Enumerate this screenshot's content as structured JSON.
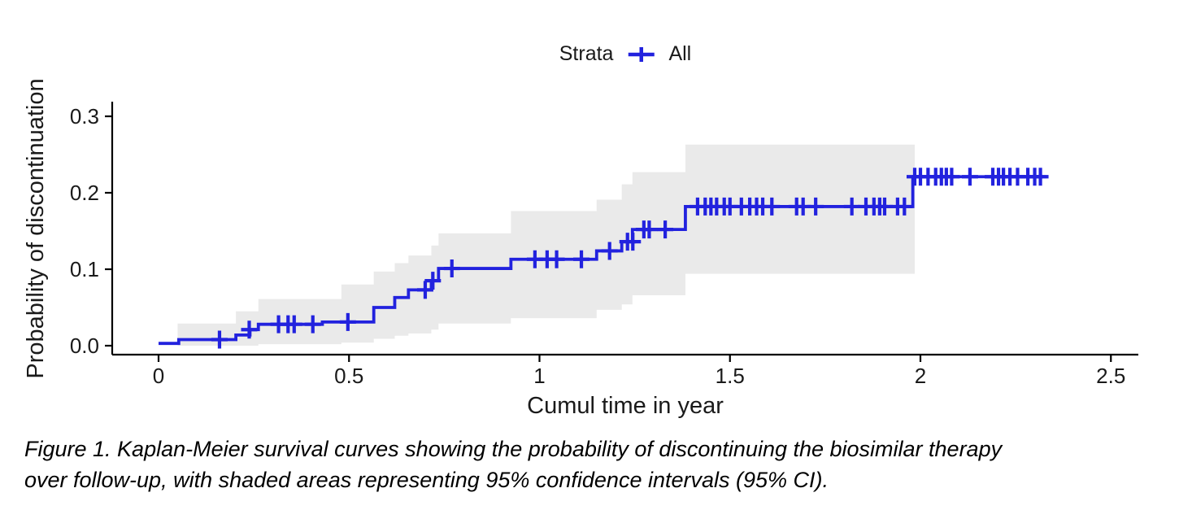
{
  "figure": {
    "caption_lines": [
      "Figure 1. Kaplan-Meier survival curves showing the probability of discontinuing the biosimilar therapy",
      "over follow-up, with shaded areas representing 95% confidence intervals (95% CI)."
    ]
  },
  "chart_data": {
    "type": "line",
    "subtype": "kaplan-meier-step",
    "title": "",
    "xlabel": "Cumul time in year",
    "ylabel": "Probability of discontinuation",
    "grid": false,
    "legend": {
      "title": "Strata",
      "position": "top",
      "entries": [
        {
          "label": "All",
          "color": "#2222DE",
          "marker": "plus"
        }
      ]
    },
    "xlim": [
      -0.12,
      2.57
    ],
    "ylim": [
      0,
      0.319
    ],
    "x_ticks": [
      {
        "value": 0,
        "label": "0"
      },
      {
        "value": 0.5,
        "label": "0.5"
      },
      {
        "value": 1,
        "label": "1"
      },
      {
        "value": 1.5,
        "label": "1.5"
      },
      {
        "value": 2,
        "label": "2"
      },
      {
        "value": 2.5,
        "label": "2.5"
      }
    ],
    "y_ticks": [
      {
        "value": 0.0,
        "label": "0.0"
      },
      {
        "value": 0.1,
        "label": "0.1"
      },
      {
        "value": 0.2,
        "label": "0.2"
      },
      {
        "value": 0.3,
        "label": "0.3"
      }
    ],
    "colors": {
      "curve": "#2222DE",
      "ci_band": "#EAEAEA",
      "axis": "#000000",
      "tick_text": "#1A1A1A"
    },
    "series": [
      {
        "name": "All",
        "steps": [
          [
            0.0,
            0.003
          ],
          [
            0.053,
            0.008
          ],
          [
            0.203,
            0.014
          ],
          [
            0.24,
            0.021
          ],
          [
            0.262,
            0.028
          ],
          [
            0.43,
            0.031
          ],
          [
            0.565,
            0.05
          ],
          [
            0.62,
            0.063
          ],
          [
            0.656,
            0.073
          ],
          [
            0.716,
            0.085
          ],
          [
            0.735,
            0.101
          ],
          [
            0.925,
            0.113
          ],
          [
            1.15,
            0.124
          ],
          [
            1.216,
            0.136
          ],
          [
            1.244,
            0.152
          ],
          [
            1.383,
            0.182
          ],
          [
            1.98,
            0.221
          ]
        ],
        "end_time": 2.33,
        "censors": [
          [
            0.16,
            0.008
          ],
          [
            0.238,
            0.021
          ],
          [
            0.315,
            0.028
          ],
          [
            0.34,
            0.028
          ],
          [
            0.356,
            0.028
          ],
          [
            0.405,
            0.028
          ],
          [
            0.497,
            0.031
          ],
          [
            0.7,
            0.073
          ],
          [
            0.72,
            0.085
          ],
          [
            0.77,
            0.101
          ],
          [
            0.988,
            0.113
          ],
          [
            1.02,
            0.113
          ],
          [
            1.045,
            0.113
          ],
          [
            1.11,
            0.113
          ],
          [
            1.184,
            0.124
          ],
          [
            1.231,
            0.136
          ],
          [
            1.245,
            0.136
          ],
          [
            1.274,
            0.152
          ],
          [
            1.288,
            0.152
          ],
          [
            1.33,
            0.152
          ],
          [
            1.415,
            0.182
          ],
          [
            1.435,
            0.182
          ],
          [
            1.45,
            0.182
          ],
          [
            1.465,
            0.182
          ],
          [
            1.485,
            0.182
          ],
          [
            1.5,
            0.182
          ],
          [
            1.53,
            0.182
          ],
          [
            1.552,
            0.182
          ],
          [
            1.57,
            0.182
          ],
          [
            1.586,
            0.182
          ],
          [
            1.61,
            0.182
          ],
          [
            1.675,
            0.182
          ],
          [
            1.692,
            0.182
          ],
          [
            1.725,
            0.182
          ],
          [
            1.82,
            0.182
          ],
          [
            1.857,
            0.182
          ],
          [
            1.878,
            0.182
          ],
          [
            1.893,
            0.182
          ],
          [
            1.906,
            0.182
          ],
          [
            1.94,
            0.182
          ],
          [
            1.958,
            0.182
          ],
          [
            1.985,
            0.221
          ],
          [
            2.0,
            0.221
          ],
          [
            2.02,
            0.221
          ],
          [
            2.04,
            0.221
          ],
          [
            2.055,
            0.221
          ],
          [
            2.068,
            0.221
          ],
          [
            2.082,
            0.221
          ],
          [
            2.13,
            0.221
          ],
          [
            2.19,
            0.221
          ],
          [
            2.205,
            0.221
          ],
          [
            2.218,
            0.221
          ],
          [
            2.235,
            0.221
          ],
          [
            2.255,
            0.221
          ],
          [
            2.282,
            0.221
          ],
          [
            2.3,
            0.221
          ],
          [
            2.315,
            0.221
          ]
        ]
      }
    ],
    "ci_band": {
      "label": "95% CI",
      "steps": [
        [
          0.05,
          0.0,
          0.029
        ],
        [
          0.203,
          0.0,
          0.045
        ],
        [
          0.262,
          0.002,
          0.061
        ],
        [
          0.48,
          0.004,
          0.08
        ],
        [
          0.565,
          0.009,
          0.097
        ],
        [
          0.62,
          0.013,
          0.108
        ],
        [
          0.656,
          0.016,
          0.118
        ],
        [
          0.716,
          0.021,
          0.131
        ],
        [
          0.735,
          0.029,
          0.147
        ],
        [
          0.925,
          0.036,
          0.176
        ],
        [
          1.15,
          0.047,
          0.191
        ],
        [
          1.216,
          0.054,
          0.211
        ],
        [
          1.244,
          0.066,
          0.227
        ],
        [
          1.383,
          0.094,
          0.263
        ]
      ],
      "end_time": 1.985
    }
  }
}
